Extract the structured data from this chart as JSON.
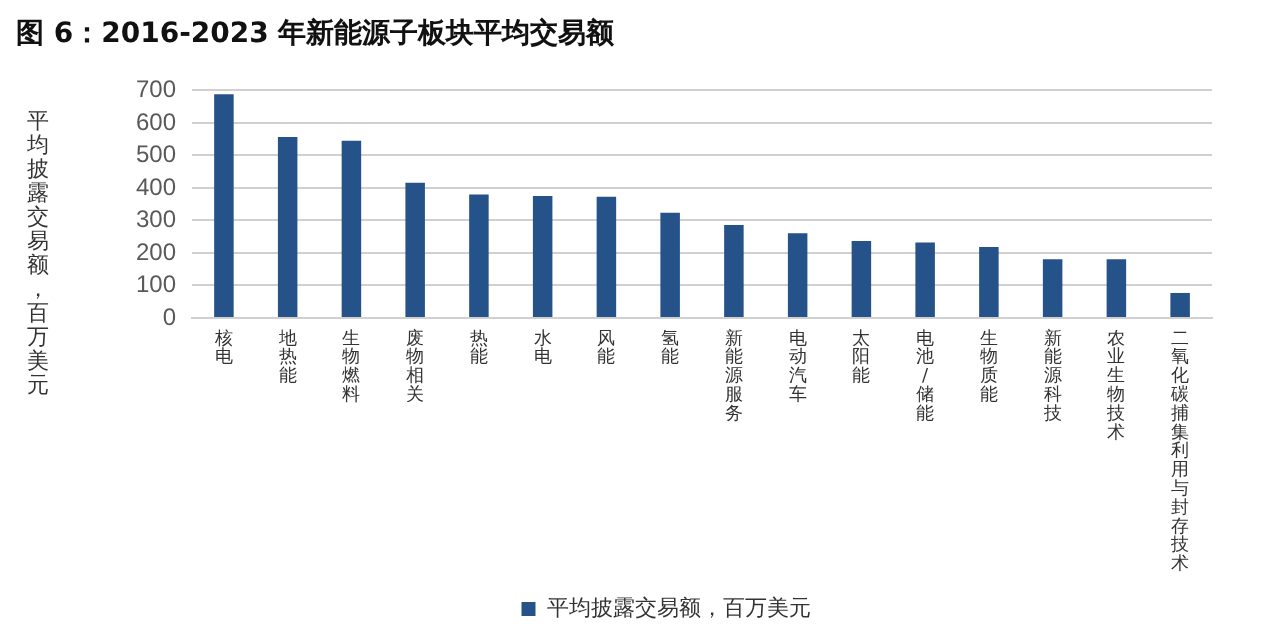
{
  "chart_data": {
    "type": "bar",
    "title": "图 6：2016-2023 年新能源子板块平均交易额",
    "ylabel": "平均披露交易额，百万美元",
    "categories": [
      "核电",
      "地热能",
      "生物燃料",
      "废物相关",
      "热能",
      "水电",
      "风能",
      "氢能",
      "新能源服务",
      "电动汽车",
      "太阳能",
      "电池/储能",
      "生物质能",
      "新能源科技",
      "农业生物技术",
      "二氧化碳捕集利用与封存技术"
    ],
    "series": [
      {
        "name": "平均披露交易额，百万美元",
        "color": "#255289",
        "values": [
          688,
          557,
          545,
          416,
          380,
          375,
          373,
          324,
          286,
          261,
          237,
          232,
          218,
          181,
          181,
          77
        ]
      }
    ],
    "ylim": [
      0,
      700
    ],
    "yticks": [
      0,
      100,
      200,
      300,
      400,
      500,
      600,
      700
    ],
    "grid": "y",
    "legend": "bottom"
  }
}
